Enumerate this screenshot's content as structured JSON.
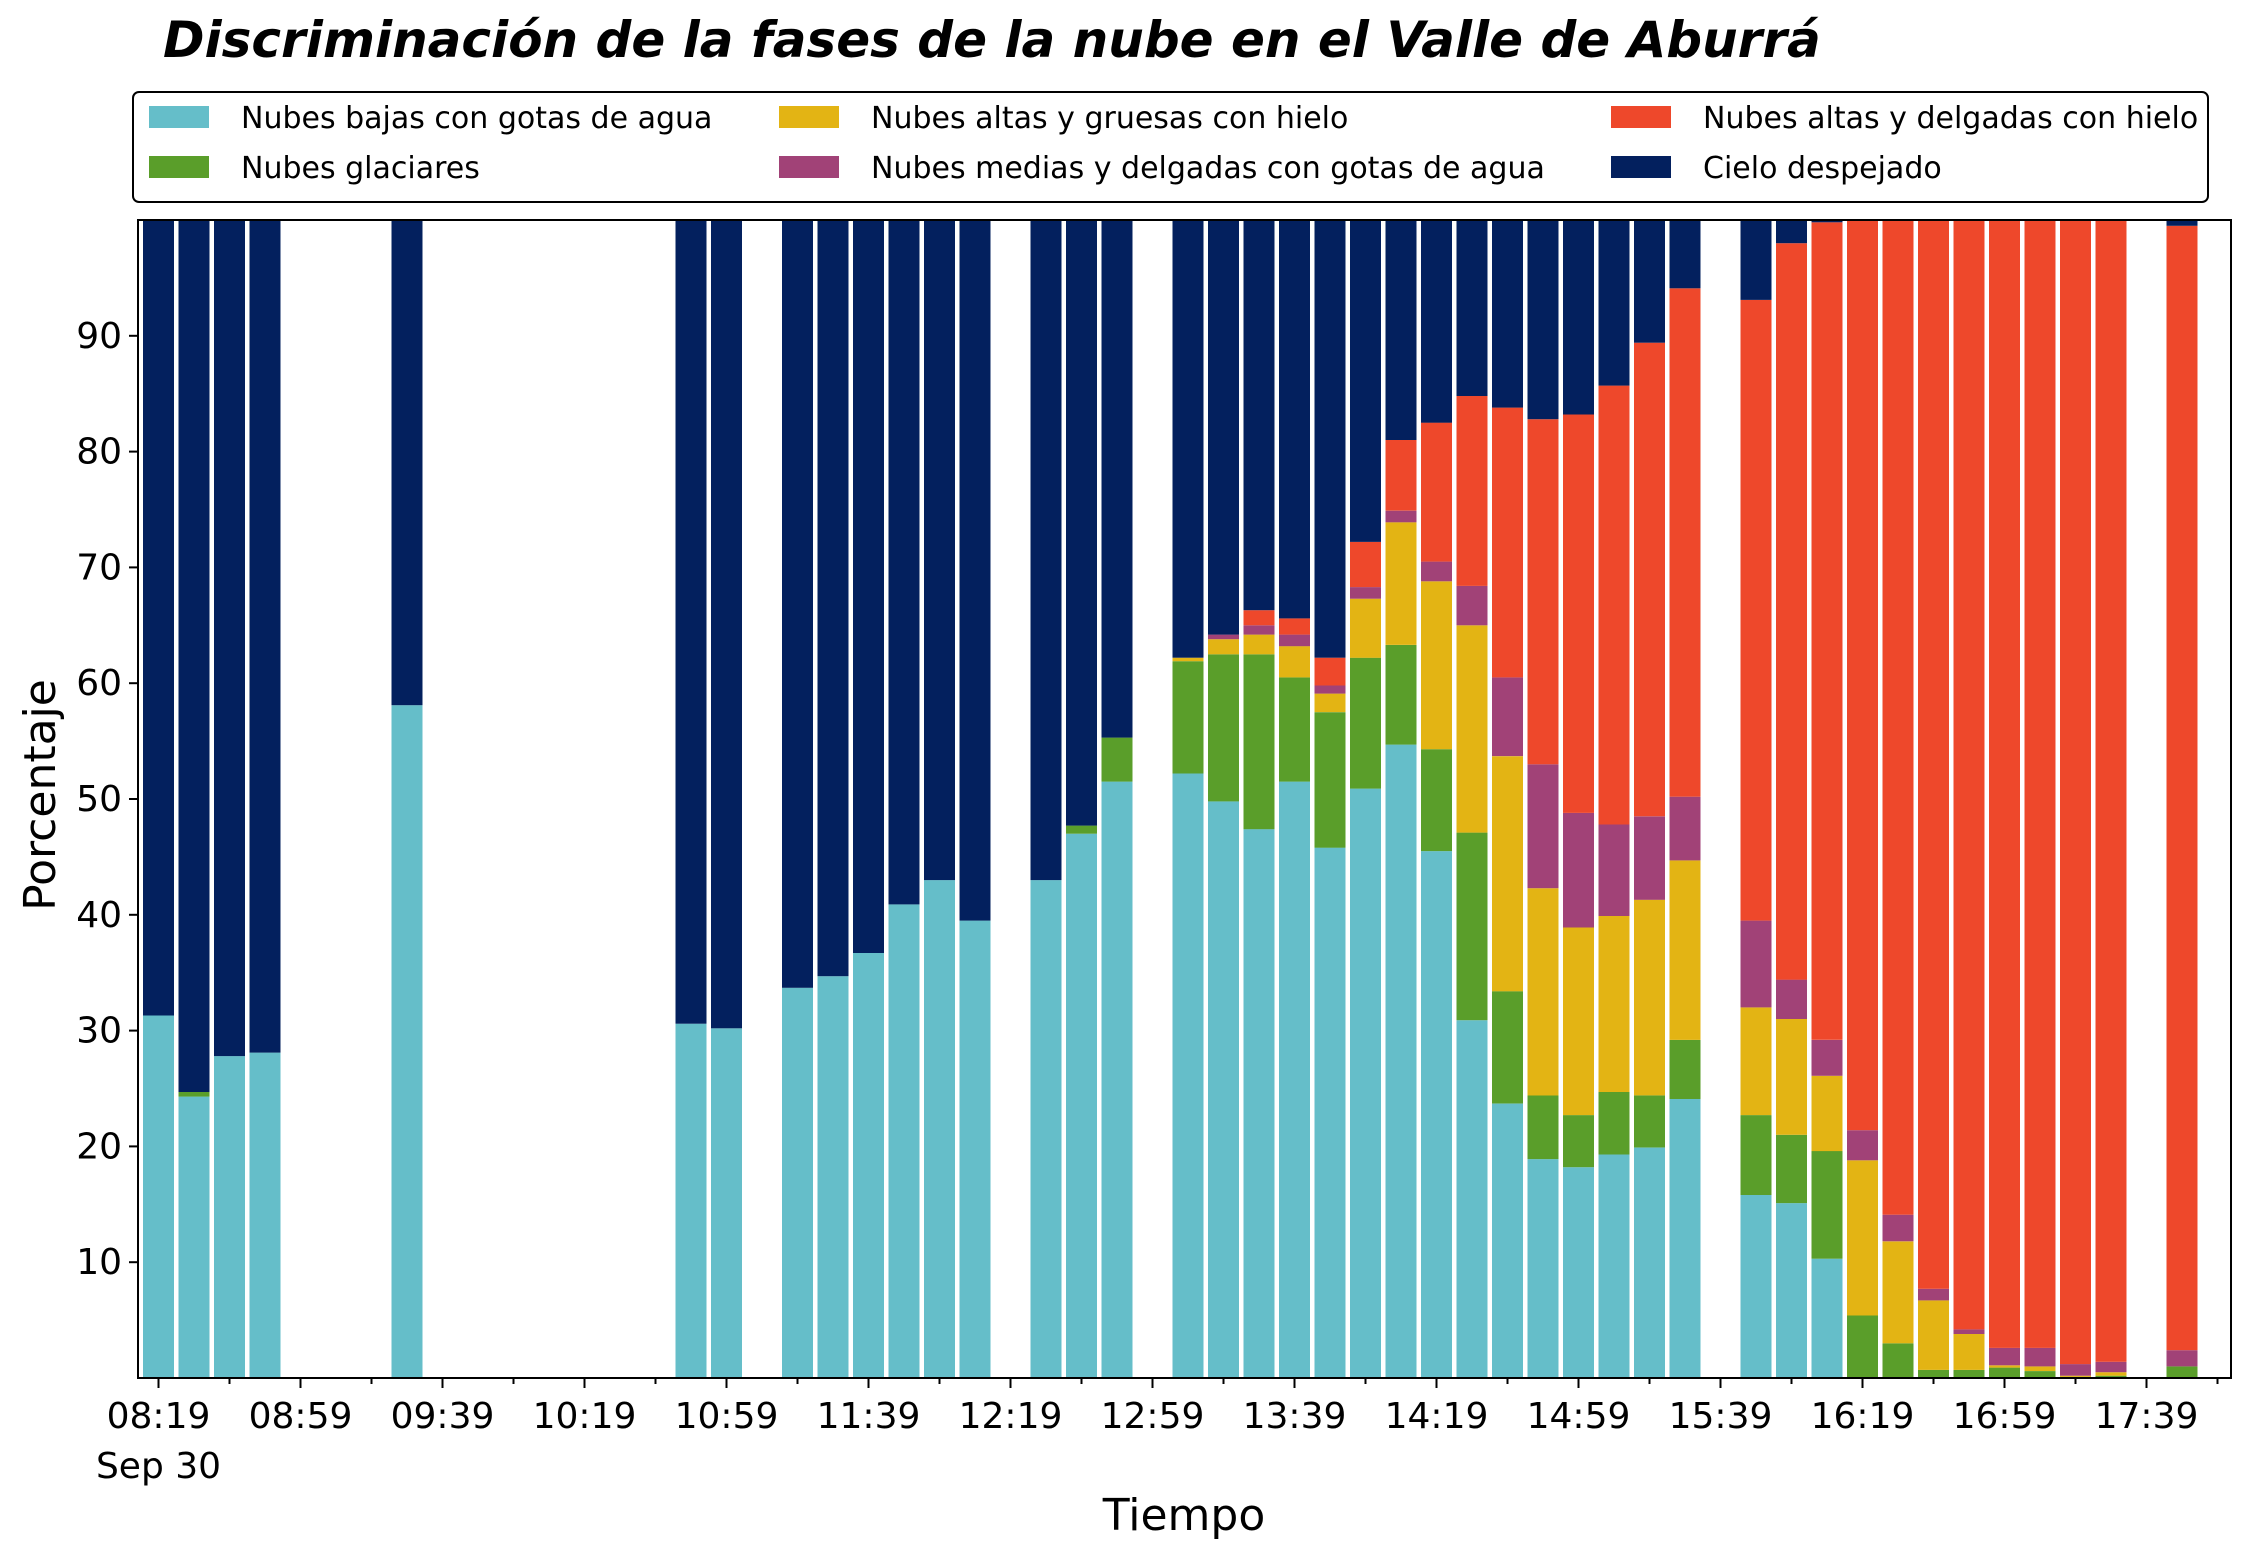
{
  "chart_data": {
    "type": "bar",
    "stacked": true,
    "title": "Discriminación de la fases de la nube en el Valle de Aburrá",
    "xlabel": "Tiempo",
    "ylabel": "Porcentaje",
    "ylim": [
      0,
      100
    ],
    "yticks": [
      10,
      20,
      30,
      40,
      50,
      60,
      70,
      80,
      90
    ],
    "xticks": [
      "08:19",
      "08:59",
      "09:39",
      "10:19",
      "10:59",
      "11:39",
      "12:19",
      "12:59",
      "13:39",
      "14:19",
      "14:59",
      "15:39",
      "16:19",
      "16:59",
      "17:39"
    ],
    "xtick_sublabel": "Sep 30",
    "grid": false,
    "legend_position": "top",
    "series": [
      {
        "name": "Nubes bajas con gotas de agua",
        "color": "#65BEC9"
      },
      {
        "name": "Nubes glaciares",
        "color": "#5A9E2A"
      },
      {
        "name": "Nubes altas y gruesas con hielo",
        "color": "#E3B414"
      },
      {
        "name": "Nubes medias y delgadas con gotas de agua",
        "color": "#A14277"
      },
      {
        "name": "Nubes altas y delgadas con hielo",
        "color": "#EE482B"
      },
      {
        "name": "Cielo despejado",
        "color": "#03205E"
      }
    ],
    "bars": [
      {
        "slot": 0,
        "values": [
          31.3,
          0,
          0,
          0,
          0,
          68.7
        ]
      },
      {
        "slot": 1,
        "values": [
          24.3,
          0.4,
          0,
          0,
          0,
          75.3
        ]
      },
      {
        "slot": 2,
        "values": [
          27.8,
          0,
          0,
          0,
          0,
          72.2
        ]
      },
      {
        "slot": 3,
        "values": [
          28.1,
          0,
          0,
          0,
          0,
          71.9
        ]
      },
      {
        "slot": 7,
        "values": [
          58.1,
          0,
          0,
          0,
          0,
          41.9
        ]
      },
      {
        "slot": 15,
        "values": [
          30.6,
          0,
          0,
          0,
          0,
          69.4
        ]
      },
      {
        "slot": 16,
        "values": [
          30.2,
          0,
          0,
          0,
          0,
          69.8
        ]
      },
      {
        "slot": 18,
        "values": [
          33.7,
          0,
          0,
          0,
          0,
          66.3
        ]
      },
      {
        "slot": 19,
        "values": [
          34.7,
          0,
          0,
          0,
          0,
          65.3
        ]
      },
      {
        "slot": 20,
        "values": [
          36.7,
          0,
          0,
          0,
          0,
          63.3
        ]
      },
      {
        "slot": 21,
        "values": [
          40.9,
          0,
          0,
          0,
          0,
          59.1
        ]
      },
      {
        "slot": 22,
        "values": [
          43.0,
          0,
          0,
          0,
          0,
          57.0
        ]
      },
      {
        "slot": 23,
        "values": [
          39.5,
          0,
          0,
          0,
          0,
          60.5
        ]
      },
      {
        "slot": 25,
        "values": [
          43.0,
          0,
          0,
          0,
          0,
          57.0
        ]
      },
      {
        "slot": 26,
        "values": [
          47.0,
          0.7,
          0,
          0,
          0,
          52.3
        ]
      },
      {
        "slot": 27,
        "values": [
          51.5,
          3.8,
          0,
          0,
          0,
          44.7
        ]
      },
      {
        "slot": 29,
        "values": [
          52.2,
          9.7,
          0.3,
          0,
          0,
          37.8
        ]
      },
      {
        "slot": 30,
        "values": [
          49.8,
          12.7,
          1.3,
          0.4,
          0,
          35.8
        ]
      },
      {
        "slot": 31,
        "values": [
          47.4,
          15.1,
          1.7,
          0.8,
          1.3,
          33.7
        ]
      },
      {
        "slot": 32,
        "values": [
          51.5,
          9.0,
          2.7,
          1.0,
          1.4,
          34.4
        ]
      },
      {
        "slot": 33,
        "values": [
          45.8,
          11.7,
          1.6,
          0.7,
          2.4,
          37.8
        ]
      },
      {
        "slot": 34,
        "values": [
          50.9,
          11.3,
          5.1,
          1.0,
          3.9,
          27.8
        ]
      },
      {
        "slot": 35,
        "values": [
          54.7,
          8.6,
          10.6,
          1.0,
          6.1,
          19.0
        ]
      },
      {
        "slot": 36,
        "values": [
          45.5,
          8.8,
          14.5,
          1.7,
          12.0,
          17.5
        ]
      },
      {
        "slot": 37,
        "values": [
          30.9,
          16.2,
          17.9,
          3.4,
          16.4,
          15.2
        ]
      },
      {
        "slot": 38,
        "values": [
          23.7,
          9.7,
          20.3,
          6.8,
          23.3,
          16.2
        ]
      },
      {
        "slot": 39,
        "values": [
          18.9,
          5.5,
          17.9,
          10.7,
          29.8,
          17.2
        ]
      },
      {
        "slot": 40,
        "values": [
          18.2,
          4.5,
          16.2,
          9.9,
          34.4,
          16.8
        ]
      },
      {
        "slot": 41,
        "values": [
          19.3,
          5.4,
          15.2,
          7.9,
          37.9,
          14.3
        ]
      },
      {
        "slot": 42,
        "values": [
          19.9,
          4.5,
          16.9,
          7.2,
          40.9,
          10.6
        ]
      },
      {
        "slot": 43,
        "values": [
          24.1,
          5.1,
          15.5,
          5.5,
          43.9,
          5.9
        ]
      },
      {
        "slot": 45,
        "values": [
          15.8,
          6.9,
          9.3,
          7.5,
          53.6,
          6.9
        ]
      },
      {
        "slot": 46,
        "values": [
          15.1,
          5.9,
          10.0,
          3.4,
          63.6,
          2.0
        ]
      },
      {
        "slot": 47,
        "values": [
          10.3,
          9.3,
          6.5,
          3.1,
          70.6,
          0.2
        ]
      },
      {
        "slot": 48,
        "values": [
          0,
          5.4,
          13.4,
          2.6,
          78.6,
          0
        ]
      },
      {
        "slot": 49,
        "values": [
          0,
          3.0,
          8.8,
          2.3,
          85.9,
          0
        ]
      },
      {
        "slot": 50,
        "values": [
          0,
          0.7,
          6.0,
          1.0,
          92.3,
          0
        ]
      },
      {
        "slot": 51,
        "values": [
          0,
          0.7,
          3.1,
          0.4,
          95.8,
          0
        ]
      },
      {
        "slot": 52,
        "values": [
          0,
          0.9,
          0.2,
          1.5,
          97.4,
          0
        ]
      },
      {
        "slot": 53,
        "values": [
          0,
          0.6,
          0.4,
          1.6,
          97.4,
          0
        ]
      },
      {
        "slot": 54,
        "values": [
          0,
          0.1,
          0.1,
          1.0,
          98.8,
          0
        ]
      },
      {
        "slot": 55,
        "values": [
          0,
          0.2,
          0.3,
          0.9,
          98.6,
          0
        ]
      },
      {
        "slot": 57,
        "values": [
          0,
          1.0,
          0,
          1.4,
          97.1,
          0.5
        ]
      }
    ]
  }
}
